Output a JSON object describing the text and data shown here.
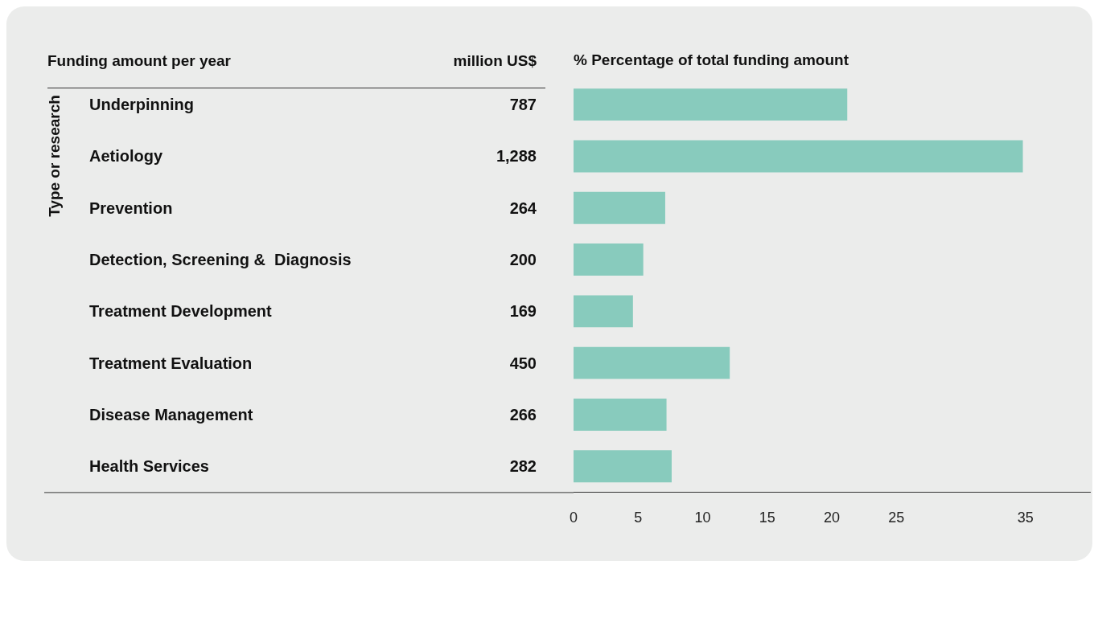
{
  "chart_data": [
    {
      "type": "other",
      "title": "Funding amount per year",
      "ylabel": "Type or research",
      "annotations": [
        "million US$"
      ],
      "categories": [
        "Underpinning",
        "Aetiology",
        "Prevention",
        "Detection, Screening &  Diagnosis",
        "Treatment Development",
        "Treatment Evaluation",
        "Disease Management",
        "Health Services"
      ],
      "values": [
        787,
        1288,
        264,
        200,
        169,
        450,
        266,
        282
      ],
      "value_labels": [
        "787",
        "1,288",
        "264",
        "200",
        "169",
        "450",
        "266",
        "282"
      ]
    },
    {
      "type": "bar",
      "orientation": "horizontal",
      "xlabel": "% Percentage of total funding amount",
      "categories": [
        null,
        null,
        null,
        null,
        null,
        null,
        null,
        null
      ],
      "values": [
        21.2,
        34.8,
        7.1,
        5.4,
        4.6,
        12.1,
        7.2,
        7.6
      ],
      "color": "#88cbbd",
      "xlim": [
        0,
        40
      ],
      "xticks": [
        0,
        5,
        10,
        15,
        20,
        25,
        35
      ],
      "grid": false
    }
  ]
}
